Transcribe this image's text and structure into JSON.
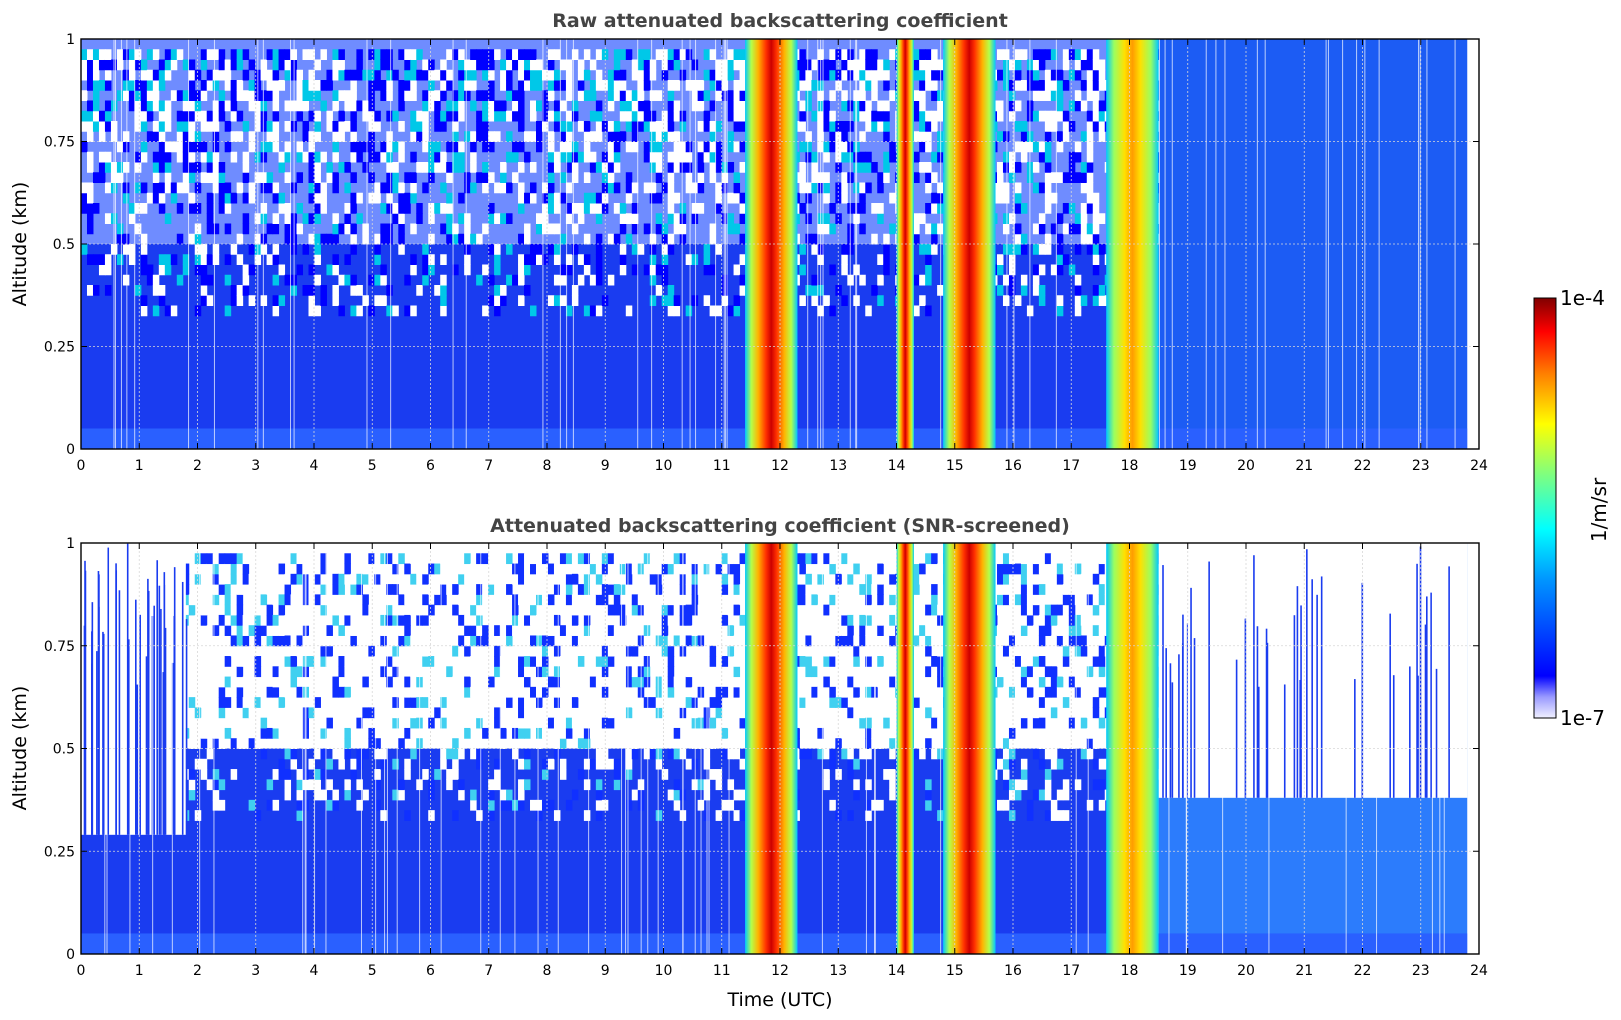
{
  "chart_data": [
    {
      "type": "heatmap",
      "title": "Raw attenuated backscattering coefficient",
      "xlabel": "",
      "ylabel": "Altitude (km)",
      "xlim": [
        0,
        24
      ],
      "ylim": [
        0,
        1
      ],
      "xticks": [
        "0",
        "1",
        "2",
        "3",
        "4",
        "5",
        "6",
        "7",
        "8",
        "9",
        "10",
        "11",
        "12",
        "13",
        "14",
        "15",
        "16",
        "17",
        "18",
        "19",
        "20",
        "21",
        "22",
        "23",
        "24"
      ],
      "yticks": [
        "0",
        "0.25",
        "0.5",
        "0.75",
        "1"
      ],
      "grid": true,
      "data_end_time": 23.8,
      "background": {
        "below_0_5km": "blue",
        "above_0_5km": "noisy blue/cyan/white",
        "after_18_5h": "light blue"
      },
      "cloud_bands": [
        {
          "start": 11.4,
          "end": 12.3,
          "peak": "red/dark red"
        },
        {
          "start": 14.0,
          "end": 14.3,
          "peak": "red/dark red"
        },
        {
          "start": 14.8,
          "end": 15.7,
          "peak": "red/dark red"
        },
        {
          "start": 17.6,
          "end": 18.5,
          "peak": "yellow/orange"
        }
      ]
    },
    {
      "type": "heatmap",
      "title": "Attenuated backscattering coefficient (SNR-screened)",
      "xlabel": "Time (UTC)",
      "ylabel": "Altitude (km)",
      "xlim": [
        0,
        24
      ],
      "ylim": [
        0,
        1
      ],
      "xticks": [
        "0",
        "1",
        "2",
        "3",
        "4",
        "5",
        "6",
        "7",
        "8",
        "9",
        "10",
        "11",
        "12",
        "13",
        "14",
        "15",
        "16",
        "17",
        "18",
        "19",
        "20",
        "21",
        "22",
        "23",
        "24"
      ],
      "yticks": [
        "0",
        "0.25",
        "0.5",
        "0.75",
        "1"
      ],
      "grid": true,
      "data_end_time": 23.8,
      "screened_above_km": [
        {
          "start": 0,
          "end": 1.8,
          "altitude": 0.29
        },
        {
          "start": 18.5,
          "end": 23.8,
          "altitude": 0.38
        }
      ],
      "cloud_bands": [
        {
          "start": 11.4,
          "end": 12.3,
          "peak": "red/dark red"
        },
        {
          "start": 14.0,
          "end": 14.3,
          "peak": "red/dark red"
        },
        {
          "start": 14.8,
          "end": 15.7,
          "peak": "red/dark red"
        },
        {
          "start": 17.6,
          "end": 18.5,
          "peak": "yellow/orange"
        }
      ]
    }
  ],
  "colorbar": {
    "label": "1/m/sr",
    "max_label": "1e-4",
    "min_label": "1e-7",
    "colormap": "jet",
    "scale": "log"
  }
}
